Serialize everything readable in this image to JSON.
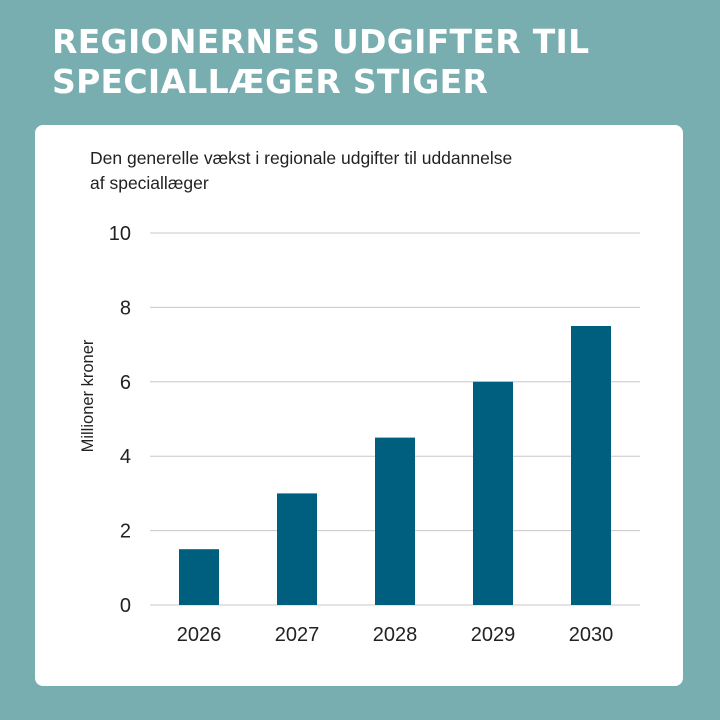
{
  "headline": {
    "line1": "REGIONERNES UDGIFTER TIL",
    "line2": "SPECIALLÆGER STIGER"
  },
  "colors": {
    "background": "#78aeb0",
    "bar": "#005f7f",
    "gridline": "#c8c8c8"
  },
  "chart_data": {
    "type": "bar",
    "title_line1": "Den generelle vækst i regionale udgifter til uddannelse",
    "title_line2": "af speciallæger",
    "categories": [
      "2026",
      "2027",
      "2028",
      "2029",
      "2030"
    ],
    "values": [
      1.5,
      3,
      4.5,
      6,
      7.5
    ],
    "xlabel": "",
    "ylabel": "Millioner kroner",
    "ylim": [
      0,
      10
    ],
    "yticks": [
      "0",
      "2",
      "4",
      "6",
      "8",
      "10"
    ],
    "grid": true,
    "legend": "none"
  }
}
